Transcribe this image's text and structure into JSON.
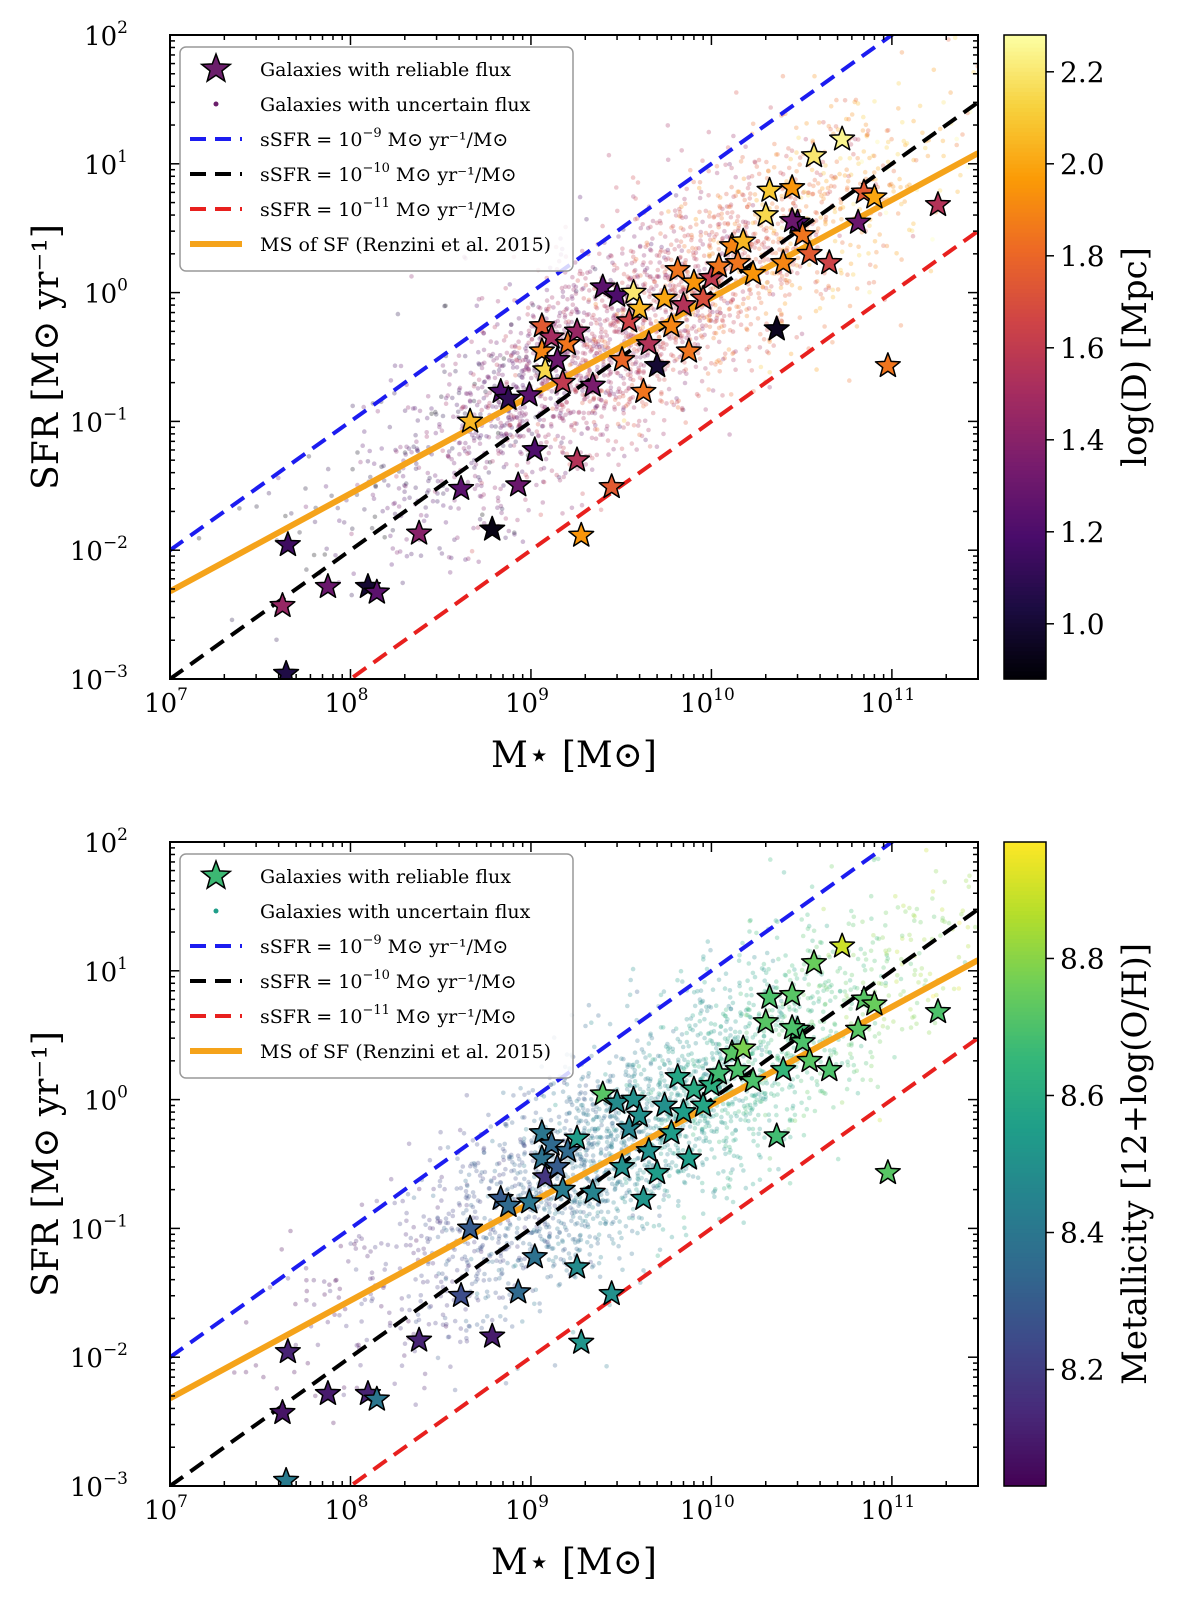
{
  "chart_data": [
    {
      "type": "scatter",
      "panel": "top",
      "xlabel": "M⋆ [M⊙]",
      "ylabel": "SFR [M⊙ yr⁻¹]",
      "xscale": "log",
      "yscale": "log",
      "xlim": [
        10000000.0,
        300000000000.0
      ],
      "ylim": [
        0.001,
        100
      ],
      "x_ticks": [
        {
          "base": "10",
          "exp": "7",
          "v": 10000000.0
        },
        {
          "base": "10",
          "exp": "8",
          "v": 100000000.0
        },
        {
          "base": "10",
          "exp": "9",
          "v": 1000000000.0
        },
        {
          "base": "10",
          "exp": "10",
          "v": 10000000000.0
        },
        {
          "base": "10",
          "exp": "11",
          "v": 100000000000.0
        }
      ],
      "y_ticks": [
        {
          "base": "10",
          "exp": "−3",
          "v": 0.001
        },
        {
          "base": "10",
          "exp": "−2",
          "v": 0.01
        },
        {
          "base": "10",
          "exp": "−1",
          "v": 0.1
        },
        {
          "base": "10",
          "exp": "0",
          "v": 1
        },
        {
          "base": "10",
          "exp": "1",
          "v": 10
        },
        {
          "base": "10",
          "exp": "2",
          "v": 100
        }
      ],
      "colorbar": {
        "label": "log(D) [Mpc]",
        "colormap": "inferno",
        "range": [
          0.88,
          2.28
        ],
        "ticks": [
          "1.0",
          "1.2",
          "1.4",
          "1.6",
          "1.8",
          "2.0",
          "2.2"
        ],
        "tick_values": [
          1.0,
          1.2,
          1.4,
          1.6,
          1.8,
          2.0,
          2.2
        ],
        "stops": [
          "#000004",
          "#1b0c41",
          "#4a0c6b",
          "#781c6d",
          "#a52c60",
          "#cf4446",
          "#ed6925",
          "#fb9b06",
          "#f7d13d",
          "#fcffa4"
        ]
      },
      "legend": {
        "position": "top-left",
        "entries": [
          {
            "kind": "star",
            "color": "#6b1f6b",
            "text": "Galaxies with reliable flux"
          },
          {
            "kind": "dot",
            "color": "#6b1f6b",
            "text": "Galaxies with uncertain flux"
          },
          {
            "kind": "line",
            "color": "#1c1cf0",
            "dash": true,
            "text": "sSFR = 10",
            "sup": "−9",
            "rest": " M⊙ yr⁻¹/M⊙"
          },
          {
            "kind": "line",
            "color": "#000000",
            "dash": true,
            "text": "sSFR = 10",
            "sup": "−10",
            "rest": " M⊙ yr⁻¹/M⊙"
          },
          {
            "kind": "line",
            "color": "#e8201e",
            "dash": true,
            "text": "sSFR = 10",
            "sup": "−11",
            "rest": " M⊙ yr⁻¹/M⊙"
          },
          {
            "kind": "line",
            "color": "#f5a31a",
            "dash": false,
            "text": "MS of SF (Renzini et al. 2015)"
          }
        ]
      },
      "lines": [
        {
          "name": "sSFR = 1e-9",
          "color": "#1c1cf0",
          "dashed": true,
          "ssfr": 1e-09
        },
        {
          "name": "sSFR = 1e-10",
          "color": "#000000",
          "dashed": true,
          "ssfr": 1e-10
        },
        {
          "name": "sSFR = 1e-11",
          "color": "#e8201e",
          "dashed": true,
          "ssfr": 1e-11
        },
        {
          "name": "MS of SF (Renzini et al. 2015)",
          "color": "#f5a31a",
          "dashed": false,
          "slope": 0.76,
          "intercept": -7.64
        }
      ],
      "uncertain_cloud": {
        "count": 2600,
        "center_logM": 9.6,
        "center_logSFR": -0.25,
        "spread_logM": 0.75,
        "spread_logSFR": 0.42
      },
      "reliable_galaxies": [
        {
          "x": 42000000.0,
          "y": 0.0037,
          "c": 1.45
        },
        {
          "x": 45000000.0,
          "y": 0.011,
          "c": 1.15
        },
        {
          "x": 44000000.0,
          "y": 0.0011,
          "c": 1.05
        },
        {
          "x": 75000000.0,
          "y": 0.0052,
          "c": 1.3
        },
        {
          "x": 125000000.0,
          "y": 0.0052,
          "c": 1.0
        },
        {
          "x": 140000000.0,
          "y": 0.0047,
          "c": 1.25
        },
        {
          "x": 240000000.0,
          "y": 0.0135,
          "c": 1.4
        },
        {
          "x": 410000000.0,
          "y": 0.03,
          "c": 1.25
        },
        {
          "x": 460000000.0,
          "y": 0.1,
          "c": 2.05
        },
        {
          "x": 610000000.0,
          "y": 0.0145,
          "c": 0.92
        },
        {
          "x": 680000000.0,
          "y": 0.17,
          "c": 1.2
        },
        {
          "x": 750000000.0,
          "y": 0.15,
          "c": 1.1
        },
        {
          "x": 850000000.0,
          "y": 0.032,
          "c": 1.3
        },
        {
          "x": 980000000.0,
          "y": 0.16,
          "c": 1.25
        },
        {
          "x": 1050000000.0,
          "y": 0.06,
          "c": 1.2
        },
        {
          "x": 1150000000.0,
          "y": 0.35,
          "c": 1.9
        },
        {
          "x": 1150000000.0,
          "y": 0.55,
          "c": 1.75
        },
        {
          "x": 1200000000.0,
          "y": 0.25,
          "c": 2.15
        },
        {
          "x": 1300000000.0,
          "y": 0.45,
          "c": 1.5
        },
        {
          "x": 1400000000.0,
          "y": 0.3,
          "c": 1.3
        },
        {
          "x": 1500000000.0,
          "y": 0.2,
          "c": 1.6
        },
        {
          "x": 1600000000.0,
          "y": 0.4,
          "c": 1.85
        },
        {
          "x": 1800000000.0,
          "y": 0.05,
          "c": 1.55
        },
        {
          "x": 1800000000.0,
          "y": 0.5,
          "c": 1.45
        },
        {
          "x": 1900000000.0,
          "y": 0.013,
          "c": 1.95
        },
        {
          "x": 2200000000.0,
          "y": 0.19,
          "c": 1.35
        },
        {
          "x": 2500000000.0,
          "y": 1.1,
          "c": 1.25
        },
        {
          "x": 2800000000.0,
          "y": 0.031,
          "c": 1.75
        },
        {
          "x": 3000000000.0,
          "y": 0.95,
          "c": 1.2
        },
        {
          "x": 3200000000.0,
          "y": 0.3,
          "c": 1.8
        },
        {
          "x": 3500000000.0,
          "y": 0.6,
          "c": 1.65
        },
        {
          "x": 3700000000.0,
          "y": 1.0,
          "c": 2.2
        },
        {
          "x": 4000000000.0,
          "y": 0.75,
          "c": 2.05
        },
        {
          "x": 4200000000.0,
          "y": 0.17,
          "c": 1.85
        },
        {
          "x": 4500000000.0,
          "y": 0.4,
          "c": 1.55
        },
        {
          "x": 5000000000.0,
          "y": 0.27,
          "c": 1.0
        },
        {
          "x": 5500000000.0,
          "y": 0.9,
          "c": 2.0
        },
        {
          "x": 6000000000.0,
          "y": 0.55,
          "c": 1.9
        },
        {
          "x": 6500000000.0,
          "y": 1.5,
          "c": 1.85
        },
        {
          "x": 7000000000.0,
          "y": 0.8,
          "c": 1.55
        },
        {
          "x": 7500000000.0,
          "y": 0.35,
          "c": 1.85
        },
        {
          "x": 8000000000.0,
          "y": 1.2,
          "c": 1.95
        },
        {
          "x": 9000000000.0,
          "y": 0.9,
          "c": 1.7
        },
        {
          "x": 10000000000.0,
          "y": 1.3,
          "c": 1.6
        },
        {
          "x": 11000000000.0,
          "y": 1.6,
          "c": 1.85
        },
        {
          "x": 13000000000.0,
          "y": 2.3,
          "c": 1.9
        },
        {
          "x": 14000000000.0,
          "y": 1.7,
          "c": 1.85
        },
        {
          "x": 15000000000.0,
          "y": 2.5,
          "c": 2.05
        },
        {
          "x": 17000000000.0,
          "y": 1.4,
          "c": 1.95
        },
        {
          "x": 20000000000.0,
          "y": 4.0,
          "c": 2.15
        },
        {
          "x": 21000000000.0,
          "y": 6.2,
          "c": 2.1
        },
        {
          "x": 23000000000.0,
          "y": 0.52,
          "c": 0.95
        },
        {
          "x": 25000000000.0,
          "y": 1.7,
          "c": 1.9
        },
        {
          "x": 28000000000.0,
          "y": 6.5,
          "c": 1.95
        },
        {
          "x": 30000000000.0,
          "y": 3.5,
          "c": 1.2
        },
        {
          "x": 32000000000.0,
          "y": 2.8,
          "c": 1.85
        },
        {
          "x": 35000000000.0,
          "y": 2.0,
          "c": 1.75
        },
        {
          "x": 37000000000.0,
          "y": 11.5,
          "c": 2.2
        },
        {
          "x": 45000000000.0,
          "y": 1.7,
          "c": 1.65
        },
        {
          "x": 53000000000.0,
          "y": 15.5,
          "c": 2.25
        },
        {
          "x": 65000000000.0,
          "y": 3.5,
          "c": 1.3
        },
        {
          "x": 70000000000.0,
          "y": 6.0,
          "c": 1.75
        },
        {
          "x": 80000000000.0,
          "y": 5.5,
          "c": 2.0
        },
        {
          "x": 95000000000.0,
          "y": 0.27,
          "c": 1.85
        },
        {
          "x": 180000000000.0,
          "y": 4.8,
          "c": 1.55
        },
        {
          "x": 28000000000.0,
          "y": 3.6,
          "c": 1.3
        }
      ]
    },
    {
      "type": "scatter",
      "panel": "bottom",
      "xlabel": "M⋆ [M⊙]",
      "ylabel": "SFR [M⊙ yr⁻¹]",
      "xscale": "log",
      "yscale": "log",
      "xlim": [
        10000000.0,
        300000000000.0
      ],
      "ylim": [
        0.001,
        100
      ],
      "x_ticks": [
        {
          "base": "10",
          "exp": "7",
          "v": 10000000.0
        },
        {
          "base": "10",
          "exp": "8",
          "v": 100000000.0
        },
        {
          "base": "10",
          "exp": "9",
          "v": 1000000000.0
        },
        {
          "base": "10",
          "exp": "10",
          "v": 10000000000.0
        },
        {
          "base": "10",
          "exp": "11",
          "v": 100000000000.0
        }
      ],
      "y_ticks": [
        {
          "base": "10",
          "exp": "−3",
          "v": 0.001
        },
        {
          "base": "10",
          "exp": "−2",
          "v": 0.01
        },
        {
          "base": "10",
          "exp": "−1",
          "v": 0.1
        },
        {
          "base": "10",
          "exp": "0",
          "v": 1
        },
        {
          "base": "10",
          "exp": "1",
          "v": 10
        },
        {
          "base": "10",
          "exp": "2",
          "v": 100
        }
      ],
      "colorbar": {
        "label": "Metallicity [12+log(O/H)]",
        "colormap": "viridis",
        "range": [
          8.03,
          8.97
        ],
        "ticks": [
          "8.2",
          "8.4",
          "8.6",
          "8.8"
        ],
        "tick_values": [
          8.2,
          8.4,
          8.6,
          8.8
        ],
        "stops": [
          "#440154",
          "#482878",
          "#3e4989",
          "#31688e",
          "#26828e",
          "#1f9e89",
          "#35b779",
          "#6ece58",
          "#b5de2b",
          "#fde725"
        ]
      },
      "legend": {
        "position": "top-left",
        "entries": [
          {
            "kind": "star",
            "color": "#3cb873",
            "text": "Galaxies with reliable flux"
          },
          {
            "kind": "dot",
            "color": "#1f9e89",
            "text": "Galaxies with uncertain flux"
          },
          {
            "kind": "line",
            "color": "#1c1cf0",
            "dash": true,
            "text": "sSFR = 10",
            "sup": "−9",
            "rest": " M⊙ yr⁻¹/M⊙"
          },
          {
            "kind": "line",
            "color": "#000000",
            "dash": true,
            "text": "sSFR = 10",
            "sup": "−10",
            "rest": " M⊙ yr⁻¹/M⊙"
          },
          {
            "kind": "line",
            "color": "#e8201e",
            "dash": true,
            "text": "sSFR = 10",
            "sup": "−11",
            "rest": " M⊙ yr⁻¹/M⊙"
          },
          {
            "kind": "line",
            "color": "#f5a31a",
            "dash": false,
            "text": "MS of SF (Renzini et al. 2015)"
          }
        ]
      },
      "lines": [
        {
          "name": "sSFR = 1e-9",
          "color": "#1c1cf0",
          "dashed": true,
          "ssfr": 1e-09
        },
        {
          "name": "sSFR = 1e-10",
          "color": "#000000",
          "dashed": true,
          "ssfr": 1e-10
        },
        {
          "name": "sSFR = 1e-11",
          "color": "#e8201e",
          "dashed": true,
          "ssfr": 1e-11
        },
        {
          "name": "MS of SF (Renzini et al. 2015)",
          "color": "#f5a31a",
          "dashed": false,
          "slope": 0.76,
          "intercept": -7.64
        }
      ],
      "uncertain_cloud": {
        "count": 2600,
        "center_logM": 9.6,
        "center_logSFR": -0.25,
        "spread_logM": 0.75,
        "spread_logSFR": 0.42
      },
      "reliable_galaxies": [
        {
          "x": 42000000.0,
          "y": 0.0037,
          "c": 8.08
        },
        {
          "x": 45000000.0,
          "y": 0.011,
          "c": 8.12
        },
        {
          "x": 44000000.0,
          "y": 0.0011,
          "c": 8.42
        },
        {
          "x": 75000000.0,
          "y": 0.0052,
          "c": 8.1
        },
        {
          "x": 125000000.0,
          "y": 0.0052,
          "c": 8.12
        },
        {
          "x": 140000000.0,
          "y": 0.0047,
          "c": 8.4
        },
        {
          "x": 240000000.0,
          "y": 0.0135,
          "c": 8.12
        },
        {
          "x": 410000000.0,
          "y": 0.03,
          "c": 8.25
        },
        {
          "x": 460000000.0,
          "y": 0.1,
          "c": 8.3
        },
        {
          "x": 610000000.0,
          "y": 0.0145,
          "c": 8.1
        },
        {
          "x": 680000000.0,
          "y": 0.17,
          "c": 8.3
        },
        {
          "x": 750000000.0,
          "y": 0.15,
          "c": 8.35
        },
        {
          "x": 850000000.0,
          "y": 0.032,
          "c": 8.35
        },
        {
          "x": 980000000.0,
          "y": 0.16,
          "c": 8.4
        },
        {
          "x": 1050000000.0,
          "y": 0.06,
          "c": 8.38
        },
        {
          "x": 1150000000.0,
          "y": 0.35,
          "c": 8.38
        },
        {
          "x": 1150000000.0,
          "y": 0.55,
          "c": 8.4
        },
        {
          "x": 1200000000.0,
          "y": 0.25,
          "c": 8.18
        },
        {
          "x": 1300000000.0,
          "y": 0.45,
          "c": 8.35
        },
        {
          "x": 1400000000.0,
          "y": 0.3,
          "c": 8.3
        },
        {
          "x": 1500000000.0,
          "y": 0.2,
          "c": 8.42
        },
        {
          "x": 1600000000.0,
          "y": 0.4,
          "c": 8.35
        },
        {
          "x": 1800000000.0,
          "y": 0.05,
          "c": 8.48
        },
        {
          "x": 1800000000.0,
          "y": 0.5,
          "c": 8.55
        },
        {
          "x": 1900000000.0,
          "y": 0.013,
          "c": 8.52
        },
        {
          "x": 2200000000.0,
          "y": 0.19,
          "c": 8.45
        },
        {
          "x": 2500000000.0,
          "y": 1.1,
          "c": 8.72
        },
        {
          "x": 2800000000.0,
          "y": 0.031,
          "c": 8.5
        },
        {
          "x": 3000000000.0,
          "y": 0.95,
          "c": 8.48
        },
        {
          "x": 3200000000.0,
          "y": 0.3,
          "c": 8.5
        },
        {
          "x": 3500000000.0,
          "y": 0.6,
          "c": 8.45
        },
        {
          "x": 3700000000.0,
          "y": 1.0,
          "c": 8.5
        },
        {
          "x": 4000000000.0,
          "y": 0.75,
          "c": 8.5
        },
        {
          "x": 4200000000.0,
          "y": 0.17,
          "c": 8.52
        },
        {
          "x": 4500000000.0,
          "y": 0.4,
          "c": 8.5
        },
        {
          "x": 5000000000.0,
          "y": 0.27,
          "c": 8.55
        },
        {
          "x": 5500000000.0,
          "y": 0.9,
          "c": 8.5
        },
        {
          "x": 6000000000.0,
          "y": 0.55,
          "c": 8.55
        },
        {
          "x": 6500000000.0,
          "y": 1.5,
          "c": 8.58
        },
        {
          "x": 7000000000.0,
          "y": 0.8,
          "c": 8.55
        },
        {
          "x": 7500000000.0,
          "y": 0.35,
          "c": 8.55
        },
        {
          "x": 8000000000.0,
          "y": 1.2,
          "c": 8.6
        },
        {
          "x": 9000000000.0,
          "y": 0.9,
          "c": 8.58
        },
        {
          "x": 10000000000.0,
          "y": 1.3,
          "c": 8.62
        },
        {
          "x": 11000000000.0,
          "y": 1.6,
          "c": 8.68
        },
        {
          "x": 13000000000.0,
          "y": 2.3,
          "c": 8.72
        },
        {
          "x": 14000000000.0,
          "y": 1.7,
          "c": 8.7
        },
        {
          "x": 15000000000.0,
          "y": 2.5,
          "c": 8.78
        },
        {
          "x": 17000000000.0,
          "y": 1.4,
          "c": 8.7
        },
        {
          "x": 20000000000.0,
          "y": 4.0,
          "c": 8.72
        },
        {
          "x": 21000000000.0,
          "y": 6.2,
          "c": 8.7
        },
        {
          "x": 23000000000.0,
          "y": 0.52,
          "c": 8.68
        },
        {
          "x": 25000000000.0,
          "y": 1.7,
          "c": 8.65
        },
        {
          "x": 28000000000.0,
          "y": 6.5,
          "c": 8.72
        },
        {
          "x": 30000000000.0,
          "y": 3.5,
          "c": 8.68
        },
        {
          "x": 32000000000.0,
          "y": 2.8,
          "c": 8.7
        },
        {
          "x": 35000000000.0,
          "y": 2.0,
          "c": 8.72
        },
        {
          "x": 37000000000.0,
          "y": 11.5,
          "c": 8.75
        },
        {
          "x": 45000000000.0,
          "y": 1.7,
          "c": 8.7
        },
        {
          "x": 53000000000.0,
          "y": 15.5,
          "c": 8.9
        },
        {
          "x": 65000000000.0,
          "y": 3.5,
          "c": 8.72
        },
        {
          "x": 70000000000.0,
          "y": 6.0,
          "c": 8.72
        },
        {
          "x": 80000000000.0,
          "y": 5.5,
          "c": 8.75
        },
        {
          "x": 95000000000.0,
          "y": 0.27,
          "c": 8.72
        },
        {
          "x": 180000000000.0,
          "y": 4.8,
          "c": 8.7
        },
        {
          "x": 28000000000.0,
          "y": 3.6,
          "c": 8.7
        }
      ]
    }
  ]
}
